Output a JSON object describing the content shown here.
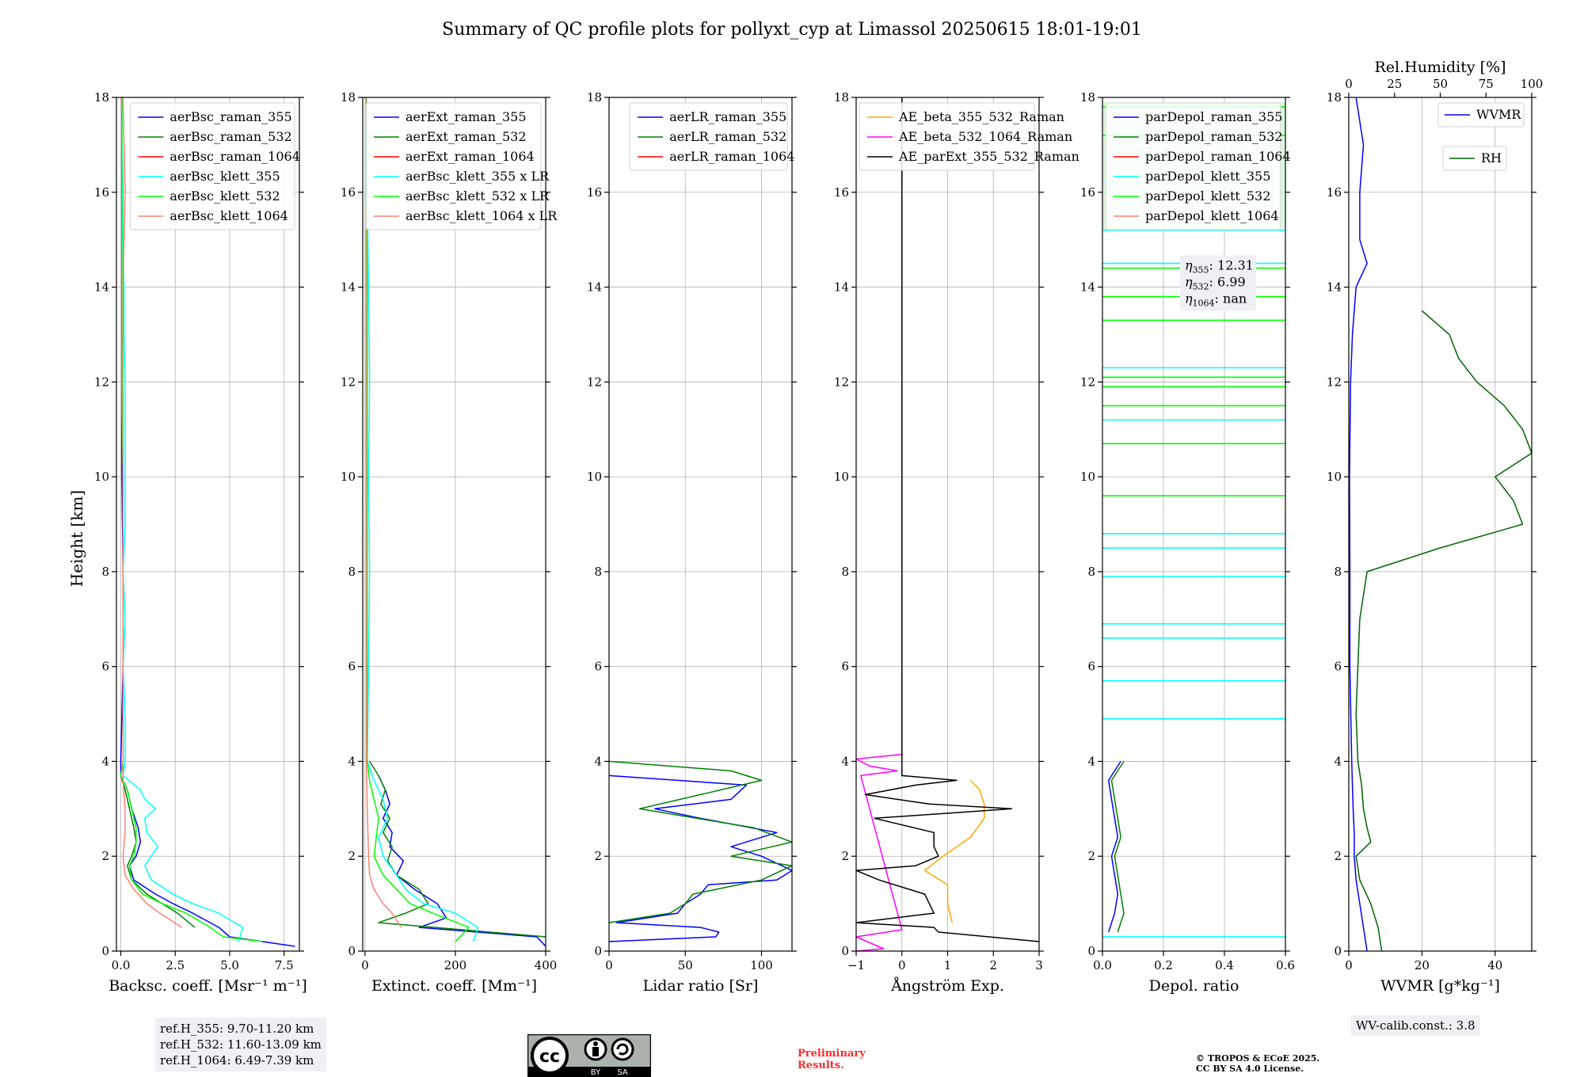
{
  "figure": {
    "title": "Summary of QC profile plots for pollyxt_cyp at Limassol 20250615 18:01-19:01",
    "ylabel": "Height [km]",
    "ref_heights": [
      "ref.H_355: 9.70-11.20 km",
      "ref.H_532: 11.60-13.09 km",
      "ref.H_1064: 6.49-7.39 km"
    ],
    "wv_calib": "WV-calib.const.: 3.8",
    "preliminary": [
      "Preliminary",
      "Results."
    ],
    "copyright": [
      "© TROPOS & ECoE 2025.",
      "CC BY SA 4.0 License."
    ],
    "license_badge": {
      "icon": "cc-by-sa-icon",
      "labels": [
        "BY",
        "SA"
      ]
    }
  },
  "colors": {
    "blue": "#0000ff",
    "green": "#008000",
    "red": "#ff0000",
    "cyan": "#00ffff",
    "lime": "#00ff00",
    "salmon": "#fa8072",
    "orange": "#ffa500",
    "magenta": "#ff00ff",
    "black": "#000000",
    "darkgreen": "#006400"
  },
  "chart_data": [
    {
      "type": "line",
      "id": "bsc",
      "xlabel": "Backsc. coeff. [Msr⁻¹ m⁻¹]",
      "xlim": [
        -0.2,
        8.2
      ],
      "ylim": [
        0,
        18
      ],
      "xticks": [
        0,
        2.5,
        5,
        7.5
      ],
      "xticklabels": [
        "0.0",
        "2.5",
        "5.0",
        "7.5"
      ],
      "legend": "upper right",
      "series": [
        {
          "name": "aerBsc_raman_355",
          "color": "#0000ff",
          "y": [
            0.1,
            0.3,
            0.5,
            0.8,
            1.0,
            1.2,
            1.5,
            1.8,
            2.0,
            2.3,
            2.6,
            3.0,
            3.4,
            3.7,
            4.0,
            6,
            8,
            10,
            12,
            14,
            16,
            18
          ],
          "x": [
            8.0,
            5.0,
            4.5,
            3.3,
            2.4,
            1.6,
            0.6,
            0.4,
            0.7,
            0.9,
            0.8,
            0.5,
            0.3,
            0.0,
            0.0,
            0.1,
            0.1,
            0.05,
            0.05,
            0.05,
            0.05,
            0.05
          ]
        },
        {
          "name": "aerBsc_raman_532",
          "color": "#008000",
          "y": [
            0.5,
            0.8,
            1.0,
            1.2,
            1.5,
            1.8,
            2.0,
            2.3,
            2.6,
            3.0,
            3.4,
            3.7
          ],
          "x": [
            3.4,
            2.6,
            1.9,
            1.2,
            0.5,
            0.3,
            0.5,
            0.7,
            0.6,
            0.4,
            0.2,
            0.0
          ]
        },
        {
          "name": "aerBsc_raman_1064",
          "color": "#ff0000",
          "y": [],
          "x": []
        },
        {
          "name": "aerBsc_klett_355",
          "color": "#00ffff",
          "y": [
            0.2,
            0.5,
            0.8,
            1.0,
            1.2,
            1.5,
            1.8,
            2.0,
            2.2,
            2.5,
            2.8,
            3.0,
            3.2,
            3.4,
            3.7,
            4.0,
            5,
            6,
            7,
            8,
            9,
            10,
            11,
            12,
            13,
            14,
            15,
            16,
            17,
            18
          ],
          "x": [
            5.4,
            5.6,
            4.5,
            3.3,
            2.4,
            1.4,
            1.1,
            1.4,
            1.7,
            1.2,
            1.1,
            1.6,
            1.1,
            0.9,
            0.1,
            0.2,
            0.2,
            0.1,
            0.2,
            0.1,
            0.2,
            0.2,
            0.2,
            0.2,
            0.15,
            0.15,
            0.1,
            0.1,
            0.05,
            0.05
          ]
        },
        {
          "name": "aerBsc_klett_532",
          "color": "#00ff00",
          "y": [
            0.2,
            0.3,
            0.5,
            0.8,
            1.0,
            1.2,
            1.5,
            1.8,
            2.0,
            2.3,
            2.6,
            3.0,
            3.4,
            3.7,
            4.0,
            6,
            8,
            10,
            12,
            14,
            16,
            18
          ],
          "x": [
            6.5,
            4.7,
            4.1,
            3.0,
            1.9,
            1.0,
            0.5,
            0.4,
            0.6,
            0.7,
            0.7,
            0.5,
            0.3,
            0.0,
            0.1,
            0.1,
            0.1,
            0.1,
            0.05,
            0.05,
            0.05,
            0.05
          ]
        },
        {
          "name": "aerBsc_klett_1064",
          "color": "#fa8072",
          "y": [
            0.5,
            0.8,
            1.0,
            1.3,
            1.6,
            2.0,
            2.5,
            3.0,
            3.6,
            4.0,
            6,
            8,
            10,
            12,
            14,
            16,
            18
          ],
          "x": [
            2.8,
            1.8,
            1.2,
            0.6,
            0.2,
            0.1,
            0.2,
            0.2,
            0.1,
            0.1,
            0.1,
            0.1,
            0.1,
            0.1,
            0.1,
            0.2,
            0.1
          ]
        }
      ]
    },
    {
      "type": "line",
      "id": "ext",
      "xlabel": "Extinct. coeff. [Mm⁻¹]",
      "xlim": [
        -5,
        400
      ],
      "ylim": [
        0,
        18
      ],
      "xticks": [
        0,
        200,
        400
      ],
      "xticklabels": [
        "0",
        "200",
        "400"
      ],
      "legend": "upper right",
      "series": [
        {
          "name": "aerExt_raman_355",
          "color": "#0000ff",
          "y": [
            0.1,
            0.3,
            0.5,
            0.7,
            1.0,
            1.3,
            1.6,
            1.9,
            2.2,
            2.5,
            2.8,
            3.1,
            3.4,
            3.7
          ],
          "x": [
            400,
            380,
            120,
            180,
            160,
            110,
            70,
            85,
            55,
            60,
            40,
            55,
            45,
            30
          ]
        },
        {
          "name": "aerExt_raman_532",
          "color": "#008000",
          "y": [
            0.3,
            0.6,
            0.8,
            1.0,
            1.3,
            1.6,
            1.9,
            2.2,
            2.5,
            2.8,
            3.1,
            3.4,
            3.7,
            4.0
          ],
          "x": [
            400,
            30,
            90,
            140,
            120,
            70,
            50,
            60,
            40,
            55,
            35,
            45,
            30,
            10
          ]
        },
        {
          "name": "aerExt_raman_1064",
          "color": "#ff0000",
          "y": [],
          "x": []
        },
        {
          "name": "aerBsc_klett_355 x LR",
          "color": "#00ffff",
          "y": [
            0.2,
            0.5,
            0.8,
            1.0,
            1.3,
            1.6,
            2.0,
            2.4,
            2.8,
            3.2,
            3.6,
            4,
            6,
            8,
            10,
            12,
            14,
            16,
            18
          ],
          "x": [
            240,
            250,
            200,
            130,
            90,
            70,
            40,
            30,
            50,
            40,
            20,
            5,
            8,
            10,
            8,
            10,
            8,
            5,
            3
          ]
        },
        {
          "name": "aerBsc_klett_532 x LR",
          "color": "#00ff00",
          "y": [
            0.2,
            0.5,
            0.8,
            1.0,
            1.3,
            1.6,
            2.0,
            2.4,
            2.8,
            3.2,
            3.6,
            4,
            6,
            8,
            10,
            12,
            14,
            16,
            18
          ],
          "x": [
            200,
            230,
            150,
            100,
            70,
            40,
            20,
            25,
            30,
            20,
            10,
            5,
            5,
            5,
            5,
            5,
            5,
            3,
            3
          ]
        },
        {
          "name": "aerBsc_klett_1064 x LR",
          "color": "#fa8072",
          "y": [
            0.5,
            0.8,
            1.0,
            1.3,
            1.6,
            2.0,
            3,
            4,
            18
          ],
          "x": [
            80,
            60,
            40,
            20,
            10,
            8,
            5,
            3,
            2
          ]
        }
      ]
    },
    {
      "type": "line",
      "id": "lr",
      "xlabel": "Lidar ratio [Sr]",
      "xlim": [
        0,
        120
      ],
      "ylim": [
        0,
        18
      ],
      "xticks": [
        0,
        50,
        100
      ],
      "xticklabels": [
        "0",
        "50",
        "100"
      ],
      "legend": "upper right",
      "series": [
        {
          "name": "aerLR_raman_355",
          "color": "#0000ff",
          "y": [
            0.2,
            0.3,
            0.4,
            0.5,
            0.6,
            0.8,
            1.0,
            1.2,
            1.4,
            1.5,
            1.7,
            2.0,
            2.2,
            2.5,
            2.8,
            3.0,
            3.2,
            3.5,
            3.7
          ],
          "x": [
            0,
            70,
            72,
            60,
            5,
            45,
            50,
            60,
            65,
            110,
            120,
            100,
            80,
            110,
            60,
            30,
            80,
            90,
            0
          ]
        },
        {
          "name": "aerLR_raman_532",
          "color": "#008000",
          "y": [
            0.6,
            0.8,
            1.0,
            1.2,
            1.5,
            1.8,
            2.0,
            2.3,
            2.6,
            3.0,
            3.3,
            3.6,
            3.8,
            4.0
          ],
          "x": [
            0,
            40,
            50,
            55,
            100,
            120,
            80,
            120,
            95,
            20,
            60,
            100,
            80,
            0
          ]
        },
        {
          "name": "aerLR_raman_1064",
          "color": "#ff0000",
          "y": [],
          "x": []
        }
      ]
    },
    {
      "type": "line",
      "id": "ae",
      "xlabel": "Ångström Exp.",
      "xlim": [
        -1,
        3
      ],
      "ylim": [
        0,
        18
      ],
      "xticks": [
        -1,
        0,
        1,
        2,
        3
      ],
      "xticklabels": [
        "−1",
        "0",
        "1",
        "2",
        "3"
      ],
      "legend": "upper right",
      "series": [
        {
          "name": "AE_beta_355_532_Raman",
          "color": "#ffa500",
          "y": [
            0.6,
            1.0,
            1.4,
            1.7,
            2.0,
            2.4,
            2.8,
            3.1,
            3.4,
            3.6
          ],
          "x": [
            1.1,
            1.0,
            1.0,
            0.5,
            0.9,
            1.5,
            1.8,
            1.8,
            1.7,
            1.5
          ]
        },
        {
          "name": "AE_beta_532_1064_Raman",
          "color": "#ff00ff",
          "y": [
            0.0,
            0.05,
            0.3,
            0.45,
            3.7,
            3.8,
            3.9,
            4.05,
            4.15
          ],
          "x": [
            -1.0,
            -0.4,
            -1.0,
            0.0,
            -0.9,
            -0.1,
            -0.7,
            -1.0,
            0.0
          ]
        },
        {
          "name": "AE_parExt_355_532_Raman",
          "color": "#000000",
          "y": [
            0.2,
            0.4,
            0.5,
            0.6,
            0.8,
            1.2,
            1.5,
            1.7,
            1.8,
            2.0,
            2.2,
            2.5,
            2.8,
            3.0,
            3.1,
            3.3,
            3.5,
            3.6,
            3.7,
            18
          ],
          "x": [
            3.0,
            0.8,
            0.7,
            -1.0,
            0.7,
            0.5,
            -0.5,
            -1.0,
            0.3,
            0.8,
            0.7,
            0.7,
            -0.6,
            2.4,
            0.6,
            -0.8,
            0.3,
            1.2,
            0.0,
            0.0
          ]
        }
      ]
    },
    {
      "type": "line",
      "id": "depol",
      "xlabel": "Depol. ratio",
      "xlim": [
        0,
        0.6
      ],
      "ylim": [
        0,
        18
      ],
      "xticks": [
        0,
        0.2,
        0.4,
        0.6
      ],
      "xticklabels": [
        "0.0",
        "0.2",
        "0.4",
        "0.6"
      ],
      "legend": "upper right",
      "annotation": [
        {
          "base": "η",
          "sub": "355",
          "value": ": 12.31"
        },
        {
          "base": "η",
          "sub": "532",
          "value": ": 6.99"
        },
        {
          "base": "η",
          "sub": "1064",
          "value": ": nan"
        }
      ],
      "series": [
        {
          "name": "parDepol_raman_355",
          "color": "#0000ff",
          "y": [
            0.4,
            0.8,
            1.2,
            1.6,
            2.0,
            2.4,
            2.8,
            3.2,
            3.6,
            4.0
          ],
          "x": [
            0.02,
            0.04,
            0.05,
            0.04,
            0.03,
            0.05,
            0.04,
            0.03,
            0.02,
            0.06
          ]
        },
        {
          "name": "parDepol_raman_532",
          "color": "#008000",
          "y": [
            0.4,
            0.8,
            1.2,
            1.6,
            2.0,
            2.4,
            2.8,
            3.2,
            3.6,
            4.0
          ],
          "x": [
            0.05,
            0.07,
            0.06,
            0.05,
            0.04,
            0.06,
            0.05,
            0.04,
            0.03,
            0.07
          ]
        },
        {
          "name": "parDepol_raman_1064",
          "color": "#ff0000",
          "y": [],
          "x": []
        },
        {
          "name": "parDepol_klett_355",
          "color": "#00ffff",
          "y": [
            0.3,
            4.9,
            5.7,
            6.6,
            6.9,
            7.9,
            8.5,
            8.8,
            11.2,
            12.3,
            14.5,
            15.2
          ],
          "x": [
            0.6,
            0.6,
            0.6,
            0.6,
            0.6,
            0.6,
            0.6,
            0.6,
            0.6,
            0.6,
            0.6,
            0.6
          ]
        },
        {
          "name": "parDepol_klett_532",
          "color": "#00ff00",
          "y": [
            9.6,
            10.7,
            11.5,
            11.9,
            12.1,
            13.3,
            13.8,
            14.4,
            17.2,
            17.8
          ],
          "x": [
            0.6,
            0.6,
            0.6,
            0.6,
            0.6,
            0.6,
            0.6,
            0.6,
            0.6,
            0.6
          ]
        },
        {
          "name": "parDepol_klett_1064",
          "color": "#fa8072",
          "y": [],
          "x": []
        }
      ]
    },
    {
      "type": "line",
      "id": "wv",
      "xlabel": "WVMR [g*kg⁻¹]",
      "xlim": [
        0,
        50
      ],
      "ylim": [
        0,
        18
      ],
      "xticks": [
        0,
        20,
        40
      ],
      "xticklabels": [
        "0",
        "20",
        "40"
      ],
      "x2label": "Rel.Humidity [%]",
      "x2lim": [
        0,
        100
      ],
      "x2ticks": [
        0,
        25,
        50,
        75,
        100
      ],
      "x2ticklabels": [
        "0",
        "25",
        "50",
        "75",
        "100"
      ],
      "series": [
        {
          "name": "WVMR",
          "color": "#0000ff",
          "axis": "bottom",
          "y": [
            0,
            0.5,
            1.0,
            1.5,
            2.0,
            2.5,
            3.0,
            3.5,
            4.0,
            6,
            8,
            10,
            12,
            13,
            14,
            14.5,
            15,
            16,
            17,
            18
          ],
          "x": [
            5.0,
            4.0,
            3.0,
            2.0,
            1.5,
            1.5,
            1.2,
            1.0,
            0.8,
            0.3,
            0.3,
            0.2,
            0.5,
            1,
            2,
            5,
            3,
            3,
            4,
            2
          ]
        },
        {
          "name": "RH",
          "color": "#006400",
          "axis": "top",
          "x2_units": "percent",
          "y": [
            0,
            0.5,
            1.0,
            1.5,
            2.0,
            2.3,
            2.6,
            3.0,
            3.5,
            4.0,
            5,
            6,
            7,
            8,
            8.5,
            9,
            9.5,
            10,
            10.5,
            11,
            11.5,
            12,
            12.5,
            13,
            13.5
          ],
          "x2": [
            18,
            16,
            12,
            6,
            4,
            12,
            10,
            8,
            7,
            5,
            4,
            5,
            6,
            10,
            50,
            95,
            90,
            80,
            100,
            95,
            85,
            70,
            60,
            55,
            40
          ]
        }
      ]
    }
  ]
}
